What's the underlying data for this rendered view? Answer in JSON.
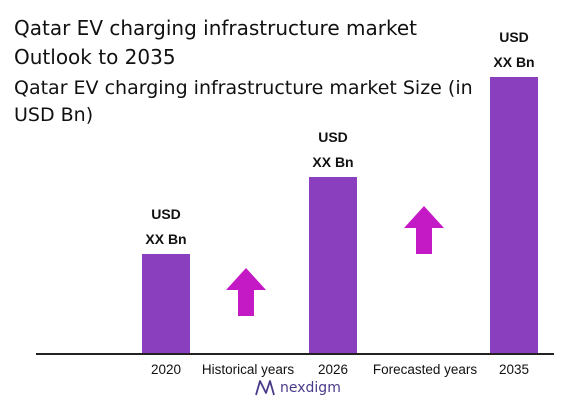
{
  "title": {
    "line1": "Qatar EV charging infrastructure market",
    "line2": "Outlook to 2035"
  },
  "subtitle": "Qatar EV charging infrastructure market Size (in USD Bn)",
  "colors": {
    "bar": "#8a3fbf",
    "arrow": "#c41ac6",
    "axis": "#222222"
  },
  "chart_data": {
    "type": "bar",
    "categories": [
      "2020",
      "2026",
      "2035"
    ],
    "values": [
      100,
      177,
      277
    ],
    "value_labels": [
      {
        "line1": "USD",
        "line2": "XX Bn"
      },
      {
        "line1": "USD",
        "line2": "XX Bn"
      },
      {
        "line1": "USD",
        "line2": "XX Bn"
      }
    ],
    "ylim": [
      0,
      277
    ],
    "annotations": [
      "Historical years",
      "Forecasted years"
    ],
    "grid": false
  },
  "icons": {
    "growth_arrow": "up-arrow-icon",
    "brand": "nexdigm-logo-icon"
  },
  "brand": "nexdigm"
}
